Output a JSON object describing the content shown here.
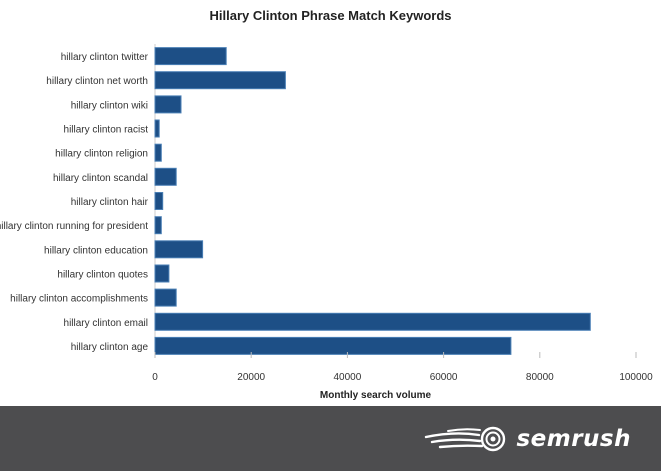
{
  "chart_data": {
    "type": "bar",
    "orientation": "horizontal",
    "title": "Hillary Clinton Phrase Match Keywords",
    "xlabel": "Monthly search volume",
    "ylabel": "",
    "xlim": [
      0,
      100000
    ],
    "xticks": [
      "0",
      "20000",
      "40000",
      "60000",
      "80000",
      "100000"
    ],
    "grid": false,
    "categories": [
      "hillary clinton twitter",
      "hillary clinton net worth",
      "hillary clinton wiki",
      "hillary clinton racist",
      "hillary clinton religion",
      "hillary clinton scandal",
      "hillary clinton hair",
      "is hillary clinton running for president",
      "hillary clinton education",
      "hillary clinton quotes",
      "hillary clinton accomplishments",
      "hillary clinton email",
      "hillary clinton age"
    ],
    "values": [
      14800,
      27100,
      5400,
      880,
      1300,
      4400,
      1600,
      1300,
      9900,
      2900,
      4400,
      90500,
      74000
    ],
    "bar_color": "#1d4f86",
    "bar_edge_color": "#4a7fb5"
  },
  "footer": {
    "brand": "semrush",
    "background": "#4d4d4f",
    "logo_icon": "semrush-fireball-icon"
  }
}
